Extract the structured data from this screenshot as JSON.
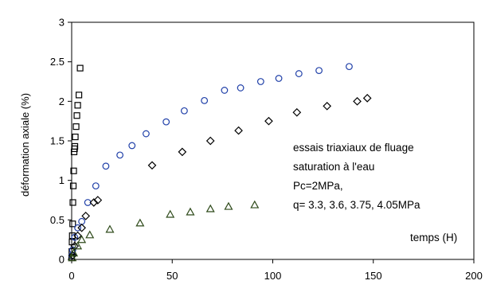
{
  "chart_data": {
    "type": "scatter",
    "xlim": [
      0,
      200
    ],
    "ylim": [
      0,
      3
    ],
    "x_ticks": [
      0,
      50,
      100,
      150,
      200
    ],
    "y_ticks": [
      0,
      0.5,
      1,
      1.5,
      2,
      2.5,
      3
    ],
    "x_tick_labels": [
      "0",
      "50",
      "100",
      "150",
      "200"
    ],
    "y_tick_labels": [
      "0",
      "0.5",
      "1",
      "1.5",
      "2",
      "2.5",
      "3"
    ],
    "xlabel": "temps (H)",
    "ylabel": "déformation axiale (%)",
    "grid": false,
    "legend": false,
    "annotations": [
      "essais triaxiaux de fluage",
      "saturation à l'eau",
      "Pc=2MPa,",
      "q= 3.3, 3.6, 3.75, 4.05MPa"
    ],
    "series": [
      {
        "marker": "square",
        "color": "#000000",
        "points": [
          [
            0,
            0.02
          ],
          [
            0.1,
            0.1
          ],
          [
            0.2,
            0.22
          ],
          [
            0.3,
            0.3
          ],
          [
            0.5,
            0.45
          ],
          [
            0.6,
            0.72
          ],
          [
            0.8,
            0.93
          ],
          [
            1,
            1.12
          ],
          [
            1.2,
            1.36
          ],
          [
            1.4,
            1.4
          ],
          [
            1.6,
            1.43
          ],
          [
            1.8,
            1.55
          ],
          [
            2.2,
            1.68
          ],
          [
            2.6,
            1.82
          ],
          [
            3,
            1.95
          ],
          [
            3.6,
            2.08
          ],
          [
            4.2,
            2.42
          ]
        ]
      },
      {
        "marker": "circle",
        "color": "#1f3fa8",
        "points": [
          [
            0.2,
            0.05
          ],
          [
            0.5,
            0.12
          ],
          [
            1.5,
            0.28
          ],
          [
            3,
            0.4
          ],
          [
            5,
            0.48
          ],
          [
            8,
            0.72
          ],
          [
            12,
            0.93
          ],
          [
            17,
            1.18
          ],
          [
            24,
            1.32
          ],
          [
            30,
            1.44
          ],
          [
            37,
            1.59
          ],
          [
            47,
            1.74
          ],
          [
            56,
            1.88
          ],
          [
            66,
            2.01
          ],
          [
            76,
            2.14
          ],
          [
            84,
            2.17
          ],
          [
            94,
            2.25
          ],
          [
            103,
            2.29
          ],
          [
            113,
            2.35
          ],
          [
            123,
            2.39
          ],
          [
            138,
            2.44
          ]
        ]
      },
      {
        "marker": "diamond",
        "color": "#000000",
        "points": [
          [
            0.5,
            0.05
          ],
          [
            1.5,
            0.17
          ],
          [
            3,
            0.3
          ],
          [
            5,
            0.4
          ],
          [
            7,
            0.55
          ],
          [
            11,
            0.72
          ],
          [
            13,
            0.75
          ],
          [
            40,
            1.19
          ],
          [
            55,
            1.36
          ],
          [
            69,
            1.5
          ],
          [
            83,
            1.63
          ],
          [
            98,
            1.75
          ],
          [
            112,
            1.86
          ],
          [
            127,
            1.94
          ],
          [
            142,
            2.0
          ],
          [
            147,
            2.04
          ]
        ]
      },
      {
        "marker": "triangle",
        "color": "#2e4a1a",
        "points": [
          [
            0.3,
            0.02
          ],
          [
            1,
            0.08
          ],
          [
            3,
            0.17
          ],
          [
            5,
            0.25
          ],
          [
            9,
            0.31
          ],
          [
            19,
            0.38
          ],
          [
            34,
            0.46
          ],
          [
            49,
            0.57
          ],
          [
            59,
            0.6
          ],
          [
            69,
            0.64
          ],
          [
            78,
            0.67
          ],
          [
            91,
            0.69
          ]
        ]
      }
    ]
  }
}
